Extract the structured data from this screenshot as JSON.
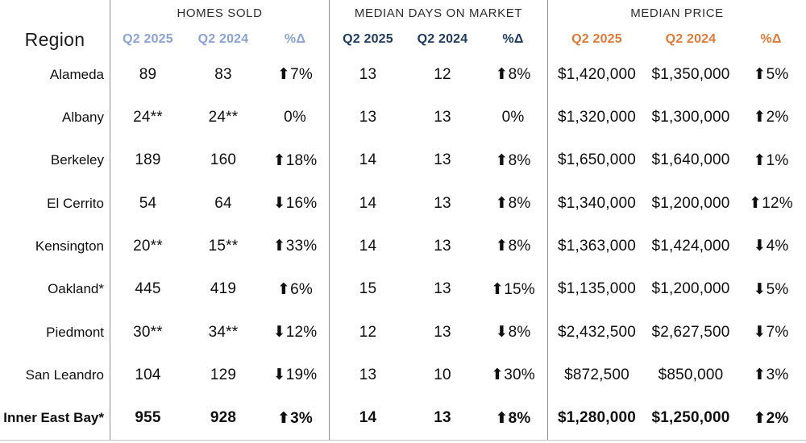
{
  "colors": {
    "homes_accent": "#8AA3D4",
    "days_accent": "#1E3A5F",
    "price_accent": "#DD7A38",
    "divider": "#8F8F8F",
    "bottom_rule": "#C6C6C6",
    "text": "#0F0F0F"
  },
  "chart_data": {
    "type": "table",
    "region_header": "Region",
    "groups": [
      {
        "title": "HOMES SOLD",
        "accent": "#8AA3D4",
        "cols": [
          "Q2 2025",
          "Q2 2024",
          "%Δ"
        ]
      },
      {
        "title": "MEDIAN DAYS ON MARKET",
        "accent": "#1E3A5F",
        "cols": [
          "Q2 2025",
          "Q2 2024",
          "%Δ"
        ]
      },
      {
        "title": "MEDIAN PRICE",
        "accent": "#DD7A38",
        "cols": [
          "Q2 2025",
          "Q2 2024",
          "%Δ"
        ]
      }
    ],
    "rows": [
      {
        "region": "Alameda",
        "homes": [
          "89",
          "83",
          "⬆7%"
        ],
        "days": [
          "13",
          "12",
          "⬆8%"
        ],
        "price": [
          "$1,420,000",
          "$1,350,000",
          "⬆5%"
        ]
      },
      {
        "region": "Albany",
        "homes": [
          "24**",
          "24**",
          "0%"
        ],
        "days": [
          "13",
          "13",
          "0%"
        ],
        "price": [
          "$1,320,000",
          "$1,300,000",
          "⬆2%"
        ]
      },
      {
        "region": "Berkeley",
        "homes": [
          "189",
          "160",
          "⬆18%"
        ],
        "days": [
          "14",
          "13",
          "⬆8%"
        ],
        "price": [
          "$1,650,000",
          "$1,640,000",
          "⬆1%"
        ]
      },
      {
        "region": "El Cerrito",
        "homes": [
          "54",
          "64",
          "⬇16%"
        ],
        "days": [
          "14",
          "13",
          "⬆8%"
        ],
        "price": [
          "$1,340,000",
          "$1,200,000",
          "⬆12%"
        ]
      },
      {
        "region": "Kensington",
        "homes": [
          "20**",
          "15**",
          "⬆33%"
        ],
        "days": [
          "14",
          "13",
          "⬆8%"
        ],
        "price": [
          "$1,363,000",
          "$1,424,000",
          "⬇4%"
        ]
      },
      {
        "region": "Oakland*",
        "homes": [
          "445",
          "419",
          "⬆6%"
        ],
        "days": [
          "15",
          "13",
          "⬆15%"
        ],
        "price": [
          "$1,135,000",
          "$1,200,000",
          "⬇5%"
        ]
      },
      {
        "region": "Piedmont",
        "homes": [
          "30**",
          "34**",
          "⬇12%"
        ],
        "days": [
          "12",
          "13",
          "⬇8%"
        ],
        "price": [
          "$2,432,500",
          "$2,627,500",
          "⬇7%"
        ]
      },
      {
        "region": "San Leandro",
        "homes": [
          "104",
          "129",
          "⬇19%"
        ],
        "days": [
          "13",
          "10",
          "⬆30%"
        ],
        "price": [
          "$872,500",
          "$850,000",
          "⬆3%"
        ]
      },
      {
        "region": "Inner East Bay*",
        "homes": [
          "955",
          "928",
          "⬆3%"
        ],
        "days": [
          "14",
          "13",
          "⬆8%"
        ],
        "price": [
          "$1,280,000",
          "$1,250,000",
          "⬆2%"
        ]
      }
    ]
  }
}
